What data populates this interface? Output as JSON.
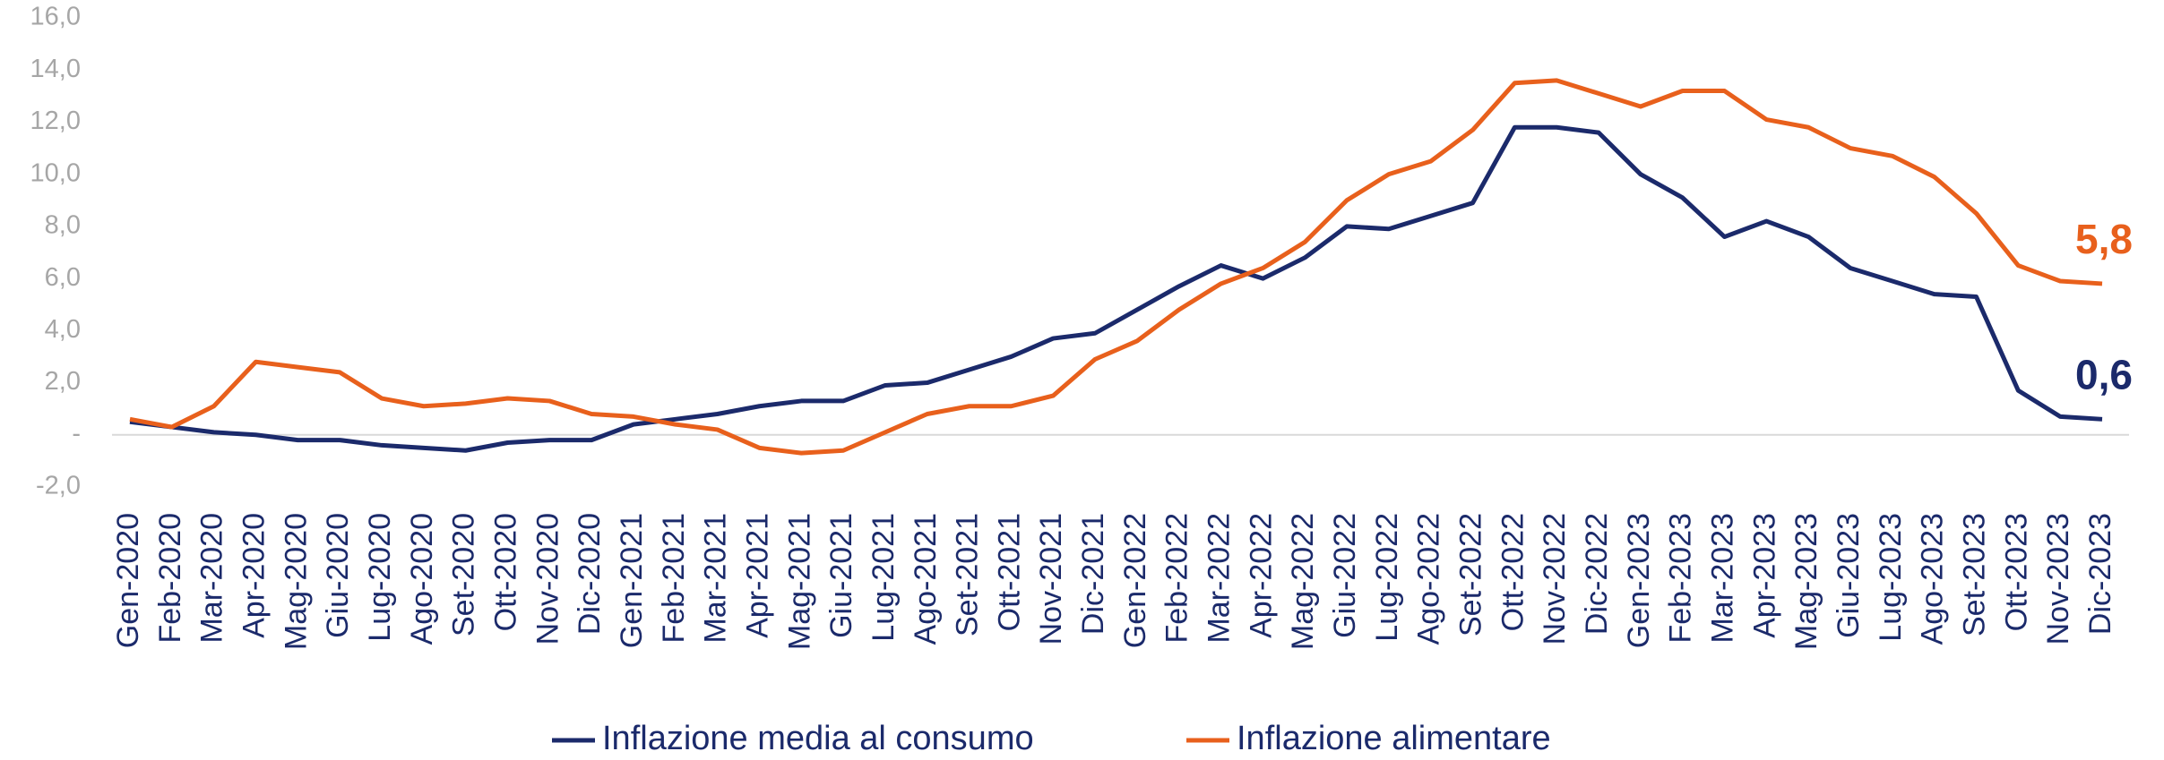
{
  "chart_data": {
    "type": "line",
    "categories": [
      "Gen-2020",
      "Feb-2020",
      "Mar-2020",
      "Apr-2020",
      "Mag-2020",
      "Giu-2020",
      "Lug-2020",
      "Ago-2020",
      "Set-2020",
      "Ott-2020",
      "Nov-2020",
      "Dic-2020",
      "Gen-2021",
      "Feb-2021",
      "Mar-2021",
      "Apr-2021",
      "Mag-2021",
      "Giu-2021",
      "Lug-2021",
      "Ago-2021",
      "Set-2021",
      "Ott-2021",
      "Nov-2021",
      "Dic-2021",
      "Gen-2022",
      "Feb-2022",
      "Mar-2022",
      "Apr-2022",
      "Mag-2022",
      "Giu-2022",
      "Lug-2022",
      "Ago-2022",
      "Set-2022",
      "Ott-2022",
      "Nov-2022",
      "Dic-2022",
      "Gen-2023",
      "Feb-2023",
      "Mar-2023",
      "Apr-2023",
      "Mag-2023",
      "Giu-2023",
      "Lug-2023",
      "Ago-2023",
      "Set-2023",
      "Ott-2023",
      "Nov-2023",
      "Dic-2023"
    ],
    "series": [
      {
        "name": "Inflazione media al consumo",
        "color": "#1b2a6b",
        "values": [
          0.5,
          0.3,
          0.1,
          0.0,
          -0.2,
          -0.2,
          -0.4,
          -0.5,
          -0.6,
          -0.3,
          -0.2,
          -0.2,
          0.4,
          0.6,
          0.8,
          1.1,
          1.3,
          1.3,
          1.9,
          2.0,
          2.5,
          3.0,
          3.7,
          3.9,
          4.8,
          5.7,
          6.5,
          6.0,
          6.8,
          8.0,
          7.9,
          8.4,
          8.9,
          11.8,
          11.8,
          11.6,
          10.0,
          9.1,
          7.6,
          8.2,
          7.6,
          6.4,
          5.9,
          5.4,
          5.3,
          1.7,
          0.7,
          0.6
        ],
        "value_labels": [
          null,
          null,
          null,
          null,
          null,
          null,
          null,
          null,
          null,
          null,
          null,
          null,
          null,
          null,
          null,
          null,
          null,
          null,
          null,
          null,
          null,
          null,
          null,
          null,
          null,
          null,
          null,
          null,
          null,
          null,
          null,
          null,
          null,
          null,
          null,
          null,
          null,
          null,
          null,
          null,
          null,
          null,
          null,
          null,
          null,
          null,
          null,
          "0,6"
        ]
      },
      {
        "name": "Inflazione alimentare",
        "color": "#e8601c",
        "values": [
          0.6,
          0.3,
          1.1,
          2.8,
          2.6,
          2.4,
          1.4,
          1.1,
          1.2,
          1.4,
          1.3,
          0.8,
          0.7,
          0.4,
          0.2,
          -0.5,
          -0.7,
          -0.6,
          0.1,
          0.8,
          1.1,
          1.1,
          1.5,
          2.9,
          3.6,
          4.8,
          5.8,
          6.4,
          7.4,
          9.0,
          10.0,
          10.5,
          11.7,
          13.5,
          13.6,
          13.1,
          12.6,
          13.2,
          13.2,
          12.1,
          11.8,
          11.0,
          10.7,
          9.9,
          8.5,
          6.5,
          5.9,
          5.8
        ],
        "value_labels": [
          null,
          null,
          null,
          null,
          null,
          null,
          null,
          null,
          null,
          null,
          null,
          null,
          null,
          null,
          null,
          null,
          null,
          null,
          null,
          null,
          null,
          null,
          null,
          null,
          null,
          null,
          null,
          null,
          null,
          null,
          null,
          null,
          null,
          null,
          null,
          null,
          null,
          null,
          null,
          null,
          null,
          null,
          null,
          null,
          null,
          null,
          null,
          "5,8"
        ]
      }
    ],
    "ylim": [
      -2,
      16
    ],
    "yticks": [
      {
        "value": -2,
        "label": "-2,0"
      },
      {
        "value": 0,
        "label": "-"
      },
      {
        "value": 2,
        "label": "2,0"
      },
      {
        "value": 4,
        "label": "4,0"
      },
      {
        "value": 6,
        "label": "6,0"
      },
      {
        "value": 8,
        "label": "8,0"
      },
      {
        "value": 10,
        "label": "10,0"
      },
      {
        "value": 12,
        "label": "12,0"
      },
      {
        "value": 14,
        "label": "14,0"
      },
      {
        "value": 16,
        "label": "16,0"
      }
    ],
    "grid": false
  }
}
